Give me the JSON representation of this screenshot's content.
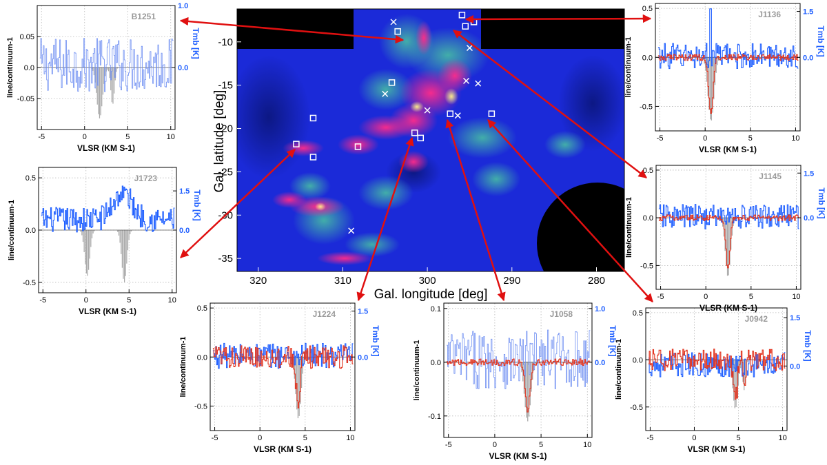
{
  "colors": {
    "hi": "#1f5fff",
    "hi_faint": "#6f8ff2",
    "oh": "#e2321d",
    "absorb": "#a9a9a9",
    "arrow": "#e01010",
    "map_bg": "#1b2ad8",
    "ink": "#000000"
  },
  "map": {
    "xlabel": "Gal. longitude [deg]",
    "ylabel": "Gal. latitude [deg]",
    "xlim": [
      322.5,
      276.7
    ],
    "ylim": [
      -36.5,
      -6.2
    ],
    "xticks": [
      320,
      310,
      300,
      290,
      280
    ],
    "yticks": [
      -10,
      -15,
      -20,
      -25,
      -30,
      -35
    ],
    "squares": [
      [
        303.5,
        -8.8
      ],
      [
        304.2,
        -14.7
      ],
      [
        313.5,
        -18.8
      ],
      [
        315.5,
        -21.8
      ],
      [
        313.5,
        -23.3
      ],
      [
        308.2,
        -22.1
      ],
      [
        301.5,
        -20.5
      ],
      [
        300.8,
        -21.1
      ],
      [
        297.3,
        -18.3
      ],
      [
        292.4,
        -18.3
      ],
      [
        295.9,
        -6.9
      ],
      [
        294.5,
        -7.7
      ],
      [
        295.5,
        -8.2
      ]
    ],
    "crosses": [
      [
        304.0,
        -7.7
      ],
      [
        295.0,
        -10.7
      ],
      [
        295.4,
        -14.5
      ],
      [
        294.0,
        -14.8
      ],
      [
        305.0,
        -16.0
      ],
      [
        300.0,
        -17.9
      ],
      [
        296.4,
        -18.5
      ],
      [
        309.0,
        -31.8
      ]
    ]
  },
  "chart_data": [
    {
      "type": "line",
      "name": "B1251",
      "title": "B1251",
      "xlabel": "VLSR (KM S-1)",
      "ylabel": "line/continuum-1",
      "y2label": "Tmb [K]",
      "xlim": [
        -5.5,
        10.5
      ],
      "ylim": [
        -0.1,
        0.1
      ],
      "y2lim": [
        -1.0,
        1.0
      ],
      "xticks": [
        -5,
        0,
        5,
        10
      ],
      "yticks": [
        -0.05,
        0.0,
        0.05
      ],
      "y2ticks": [
        0.0,
        1.0
      ],
      "series": [
        {
          "name": "HI Tmb",
          "axis": "right",
          "style": "faint"
        },
        {
          "name": "absorption",
          "type": "bar",
          "center": 1.7,
          "width": 0.8,
          "depth": -0.082
        },
        {
          "name": "absorption 2",
          "type": "bar",
          "center": 3.2,
          "width": 0.5,
          "depth": -0.06
        }
      ]
    },
    {
      "type": "line",
      "name": "J1723",
      "title": "J1723",
      "xlabel": "VLSR (KM S-1)",
      "ylabel": "line/continuum-1",
      "y2label": "Tmb [K]",
      "xlim": [
        -5.5,
        10.5
      ],
      "ylim": [
        -0.6,
        0.6
      ],
      "y2lim": [
        -2.4,
        2.4
      ],
      "xticks": [
        -5,
        0,
        5,
        10
      ],
      "yticks": [
        -0.5,
        0.0,
        0.5
      ],
      "y2ticks": [
        0.0,
        1.5
      ],
      "series": [
        {
          "name": "HI Tmb",
          "axis": "right",
          "style": "solid"
        },
        {
          "name": "absorption",
          "type": "bar",
          "center": 0.1,
          "width": 0.7,
          "depth": -0.44
        },
        {
          "name": "absorption 2",
          "type": "bar",
          "center": 4.4,
          "width": 0.7,
          "depth": -0.5
        }
      ]
    },
    {
      "type": "line",
      "name": "J1224",
      "title": "J1224",
      "xlabel": "VLSR (KM S-1)",
      "ylabel": "line/continuum-1",
      "y2label": "Tmb [K]",
      "xlim": [
        -5.5,
        10.5
      ],
      "ylim": [
        -0.75,
        0.55
      ],
      "y2lim": [
        -2.4,
        1.76
      ],
      "xticks": [
        -5,
        0,
        5,
        10
      ],
      "yticks": [
        -0.5,
        0.0,
        0.5
      ],
      "y2ticks": [
        0.0,
        1.5
      ],
      "series": [
        {
          "name": "OH line",
          "axis": "left",
          "style": "red"
        },
        {
          "name": "HI Tmb",
          "axis": "right",
          "style": "solid"
        },
        {
          "name": "absorption",
          "type": "bar",
          "center": 4.2,
          "width": 0.7,
          "depth": -0.63
        }
      ]
    },
    {
      "type": "line",
      "name": "J1058",
      "title": "J1058",
      "xlabel": "VLSR (KM S-1)",
      "ylabel": "line/continuum-1",
      "y2label": "Tmb [K]",
      "xlim": [
        -5.5,
        10.5
      ],
      "ylim": [
        -0.14,
        0.11
      ],
      "y2lim": [
        -1.4,
        1.1
      ],
      "xticks": [
        -5,
        0,
        5,
        10
      ],
      "yticks": [
        -0.1,
        0.0,
        0.1
      ],
      "y2ticks": [
        0.0,
        1.0
      ],
      "series": [
        {
          "name": "OH line",
          "axis": "left",
          "style": "red"
        },
        {
          "name": "HI Tmb",
          "axis": "right",
          "style": "faint"
        },
        {
          "name": "absorption",
          "type": "bar",
          "center": 3.5,
          "width": 0.8,
          "depth": -0.11
        }
      ]
    },
    {
      "type": "line",
      "name": "J0942",
      "title": "J0942",
      "xlabel": "VLSR (KM S-1)",
      "ylabel": "line/continuum-1",
      "y2label": "Tmb [K]",
      "xlim": [
        -5.5,
        10.5
      ],
      "ylim": [
        -0.75,
        0.55
      ],
      "y2lim": [
        -2.0,
        1.8
      ],
      "xticks": [
        -5,
        0,
        5,
        10
      ],
      "yticks": [
        -0.5,
        0.0,
        0.5
      ],
      "y2ticks": [
        0.0,
        1.5
      ],
      "series": [
        {
          "name": "OH line",
          "axis": "left",
          "style": "red"
        },
        {
          "name": "HI Tmb",
          "axis": "right",
          "style": "solid"
        },
        {
          "name": "absorption",
          "type": "bar",
          "center": 4.6,
          "width": 0.7,
          "depth": -0.52
        },
        {
          "name": "absorption 2",
          "type": "bar",
          "center": 5.6,
          "width": 0.4,
          "depth": -0.32
        }
      ]
    },
    {
      "type": "line",
      "name": "J1145",
      "title": "J1145",
      "xlabel": "VLSR (KM S-1)",
      "ylabel": "line/continuum-1",
      "y2label": "Tmb [K]",
      "xlim": [
        -5.5,
        10.5
      ],
      "ylim": [
        -0.75,
        0.55
      ],
      "y2lim": [
        -2.4,
        1.76
      ],
      "xticks": [
        -5,
        0,
        5,
        10
      ],
      "yticks": [
        -0.5,
        0.0,
        0.5
      ],
      "y2ticks": [
        0.0,
        1.5
      ],
      "series": [
        {
          "name": "OH line",
          "axis": "left",
          "style": "red"
        },
        {
          "name": "HI Tmb",
          "axis": "right",
          "style": "solid"
        },
        {
          "name": "absorption",
          "type": "bar",
          "center": 2.4,
          "width": 0.7,
          "depth": -0.62
        }
      ]
    },
    {
      "type": "line",
      "name": "J1136",
      "title": "J1136",
      "xlabel": "VLSR (KM S-1)",
      "ylabel": "line/continuum-1",
      "y2label": "Tmb [K]",
      "xlim": [
        -5.5,
        10.5
      ],
      "ylim": [
        -0.75,
        0.55
      ],
      "y2lim": [
        -2.4,
        1.76
      ],
      "xticks": [
        -5,
        0,
        5,
        10
      ],
      "yticks": [
        -0.5,
        0.0,
        0.5
      ],
      "y2ticks": [
        0.0,
        1.5
      ],
      "series": [
        {
          "name": "OH line",
          "axis": "left",
          "style": "red"
        },
        {
          "name": "HI Tmb",
          "axis": "right",
          "style": "solid"
        },
        {
          "name": "absorption",
          "type": "bar",
          "center": 0.6,
          "width": 0.8,
          "depth": -0.65
        }
      ]
    }
  ]
}
